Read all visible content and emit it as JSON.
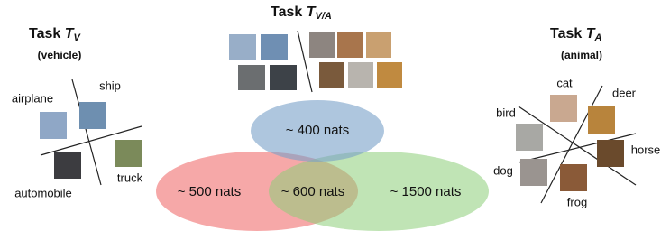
{
  "left_task": {
    "title": {
      "prefix": "Task",
      "symbol": "T",
      "subscript": "V"
    },
    "subtitle": "(vehicle)",
    "classes": [
      "airplane",
      "ship",
      "automobile",
      "truck"
    ]
  },
  "middle_task": {
    "title": {
      "prefix": "Task",
      "symbol": "T",
      "subscript": "V/A"
    }
  },
  "right_task": {
    "title": {
      "prefix": "Task",
      "symbol": "T",
      "subscript": "A"
    },
    "subtitle": "(animal)",
    "classes": [
      "cat",
      "deer",
      "bird",
      "horse",
      "dog",
      "frog"
    ]
  },
  "venn": {
    "regions": [
      "~ 400 nats",
      "~ 500 nats",
      "~ 600 nats",
      "~ 1500 nats"
    ]
  }
}
